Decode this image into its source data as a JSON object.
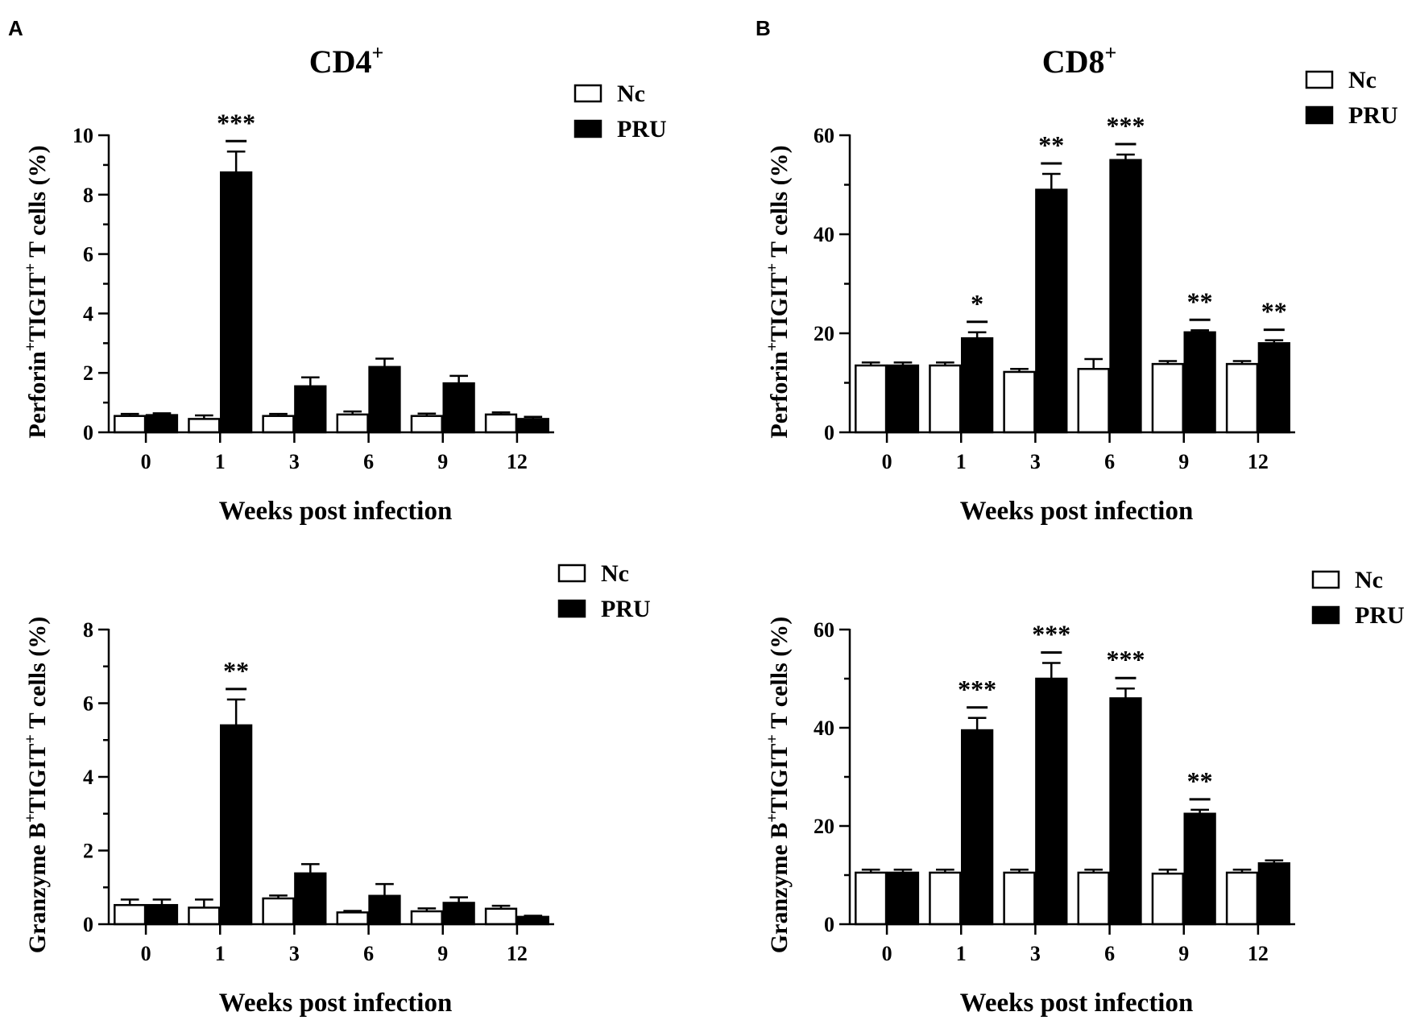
{
  "panels": [
    {
      "letter": "A",
      "title": "CD4",
      "title_sup": "+"
    },
    {
      "letter": "B",
      "title": "CD8",
      "title_sup": "+"
    }
  ],
  "chart_data": [
    {
      "type": "bar",
      "panel": "A",
      "title": "CD4+",
      "categories": [
        "0",
        "1",
        "3",
        "6",
        "9",
        "12"
      ],
      "xlabel": "Weeks post infection",
      "ylabel_parts": [
        "Perforin",
        "+",
        "TIGIT",
        "+",
        " T  cells (%)"
      ],
      "ylim": [
        0,
        10
      ],
      "yticks": [
        "0",
        "2",
        "4",
        "6",
        "8",
        "10"
      ],
      "series": [
        {
          "name": "Nc",
          "fill": "#ffffff",
          "values": [
            0.55,
            0.45,
            0.55,
            0.6,
            0.55,
            0.6
          ],
          "errors": [
            0.07,
            0.12,
            0.07,
            0.1,
            0.08,
            0.07
          ]
        },
        {
          "name": "PRU",
          "fill": "#000000",
          "values": [
            0.58,
            8.75,
            1.55,
            2.2,
            1.65,
            0.45
          ],
          "errors": [
            0.06,
            0.7,
            0.3,
            0.28,
            0.25,
            0.07
          ]
        }
      ],
      "significance": [
        {
          "category": "1",
          "label": "***"
        }
      ]
    },
    {
      "type": "bar",
      "panel": "B",
      "title": "CD8+",
      "categories": [
        "0",
        "1",
        "3",
        "6",
        "9",
        "12"
      ],
      "xlabel": "Weeks post infection",
      "ylabel_parts": [
        "Perforin",
        "+",
        "TIGIT",
        "+",
        " T  cells (%)"
      ],
      "ylim": [
        0,
        60
      ],
      "yticks": [
        "0",
        "20",
        "40",
        "60"
      ],
      "series": [
        {
          "name": "Nc",
          "fill": "#ffffff",
          "values": [
            13.5,
            13.5,
            12.2,
            12.8,
            13.8,
            13.8
          ],
          "errors": [
            0.6,
            0.6,
            0.6,
            2.0,
            0.6,
            0.6
          ]
        },
        {
          "name": "PRU",
          "fill": "#000000",
          "values": [
            13.5,
            19,
            49,
            55,
            20.2,
            18
          ],
          "errors": [
            0.6,
            1.2,
            3.2,
            1.1,
            0.4,
            0.6
          ]
        }
      ],
      "significance": [
        {
          "category": "1",
          "label": "*"
        },
        {
          "category": "3",
          "label": "**"
        },
        {
          "category": "6",
          "label": "***"
        },
        {
          "category": "9",
          "label": "**"
        },
        {
          "category": "12",
          "label": "**"
        }
      ]
    },
    {
      "type": "bar",
      "panel": "A",
      "title": "",
      "categories": [
        "0",
        "1",
        "3",
        "6",
        "9",
        "12"
      ],
      "xlabel": "Weeks post infection",
      "ylabel_parts": [
        "Granzyme B",
        "+",
        "TIGIT",
        "+",
        " T  cells (%)"
      ],
      "ylim": [
        0,
        8
      ],
      "yticks": [
        "0",
        "2",
        "4",
        "6",
        "8"
      ],
      "series": [
        {
          "name": "Nc",
          "fill": "#ffffff",
          "values": [
            0.52,
            0.45,
            0.7,
            0.32,
            0.35,
            0.42
          ],
          "errors": [
            0.15,
            0.22,
            0.08,
            0.04,
            0.08,
            0.08
          ]
        },
        {
          "name": "PRU",
          "fill": "#000000",
          "values": [
            0.52,
            5.4,
            1.38,
            0.77,
            0.58,
            0.2
          ],
          "errors": [
            0.15,
            0.7,
            0.25,
            0.32,
            0.15,
            0.03
          ]
        }
      ],
      "significance": [
        {
          "category": "1",
          "label": "**"
        }
      ]
    },
    {
      "type": "bar",
      "panel": "B",
      "title": "",
      "categories": [
        "0",
        "1",
        "3",
        "6",
        "9",
        "12"
      ],
      "xlabel": "Weeks post infection",
      "ylabel_parts": [
        "Granzyme B",
        "+",
        "TIGIT",
        "+",
        " T  cells (%)"
      ],
      "ylim": [
        0,
        60
      ],
      "yticks": [
        "0",
        "20",
        "40",
        "60"
      ],
      "series": [
        {
          "name": "Nc",
          "fill": "#ffffff",
          "values": [
            10.5,
            10.5,
            10.5,
            10.5,
            10.3,
            10.5
          ],
          "errors": [
            0.6,
            0.6,
            0.6,
            0.6,
            0.8,
            0.6
          ]
        },
        {
          "name": "PRU",
          "fill": "#000000",
          "values": [
            10.5,
            39.5,
            50,
            46,
            22.5,
            12.4
          ],
          "errors": [
            0.6,
            2.5,
            3.2,
            2.0,
            0.8,
            0.6
          ]
        }
      ],
      "significance": [
        {
          "category": "1",
          "label": "***"
        },
        {
          "category": "3",
          "label": "***"
        },
        {
          "category": "6",
          "label": "***"
        },
        {
          "category": "9",
          "label": "**"
        }
      ]
    }
  ]
}
